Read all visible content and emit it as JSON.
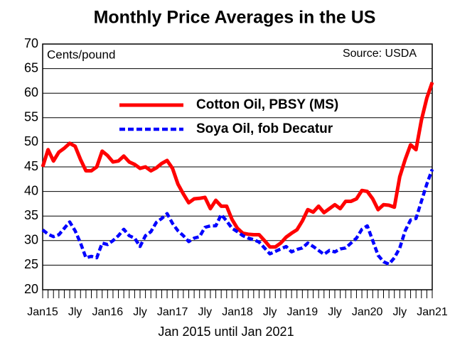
{
  "chart_data": {
    "type": "line",
    "title": "Monthly Price Averages in the US",
    "y_axis_label": "Cents/pound",
    "source": "Source: USDA",
    "x_axis_label": "Jan 2015 until Jan 2021",
    "categories": [
      "Jan15",
      null,
      null,
      null,
      null,
      null,
      "Jly",
      null,
      null,
      null,
      null,
      null,
      "Jan16",
      null,
      null,
      null,
      null,
      null,
      "Jly",
      null,
      null,
      null,
      null,
      null,
      "Jan17",
      null,
      null,
      null,
      null,
      null,
      "Jly",
      null,
      null,
      null,
      null,
      null,
      "Jan18",
      null,
      null,
      null,
      null,
      null,
      "Jly",
      null,
      null,
      null,
      null,
      null,
      "Jan19",
      null,
      null,
      null,
      null,
      null,
      "Jly",
      null,
      null,
      null,
      null,
      null,
      "Jan20",
      null,
      null,
      null,
      null,
      null,
      "Jly",
      null,
      null,
      null,
      null,
      null,
      "Jan21"
    ],
    "series": [
      {
        "name": "Cotton Oil, PBSY (MS)",
        "color": "#ff0000",
        "dash": false,
        "values": [
          45,
          48.5,
          46.2,
          48,
          48.8,
          49.8,
          49.2,
          46.5,
          44.2,
          44.2,
          45,
          48.2,
          47.3,
          46,
          46.2,
          47.2,
          46,
          45.5,
          44.7,
          45,
          44.2,
          44.8,
          45.7,
          46.3,
          44.7,
          41.5,
          39.5,
          37.7,
          38.5,
          38.6,
          38.8,
          36.5,
          38.2,
          37,
          37,
          34.3,
          32.5,
          31.5,
          31.3,
          31.2,
          31.2,
          30,
          28.7,
          28.7,
          29.5,
          30.7,
          31.5,
          32.2,
          34,
          36.3,
          35.8,
          37,
          35.7,
          36.5,
          37.3,
          36.5,
          38,
          38,
          38.5,
          40.2,
          40,
          38.5,
          36.3,
          37.3,
          37.2,
          36.8,
          43,
          46.5,
          49.5,
          48.5,
          54.5,
          59,
          62.2
        ]
      },
      {
        "name": "Soya Oil, fob Decatur",
        "color": "#0000ff",
        "dash": true,
        "values": [
          32.2,
          31.3,
          30.8,
          31.2,
          32.5,
          33.8,
          32,
          29.5,
          26.5,
          26.8,
          26.5,
          29.5,
          29.2,
          30,
          31,
          32.3,
          31,
          30.5,
          28.8,
          31,
          31.8,
          33.7,
          34.5,
          35.5,
          33.5,
          32,
          31,
          29.8,
          30.5,
          30.8,
          32.7,
          33,
          33,
          35.3,
          34,
          32.5,
          31.8,
          31,
          30.5,
          30.2,
          29.7,
          28.5,
          27.3,
          27.8,
          28.3,
          28.8,
          27.7,
          28.2,
          28.5,
          29.5,
          28.8,
          28,
          27.2,
          28,
          27.7,
          28.3,
          28.5,
          29.5,
          30.5,
          32.3,
          33,
          30,
          27,
          25.7,
          25.2,
          26.5,
          28.5,
          32,
          34.2,
          34.5,
          38,
          41.5,
          44.5
        ]
      }
    ],
    "ylim": [
      20,
      70
    ],
    "yticks": [
      20,
      25,
      30,
      35,
      40,
      45,
      50,
      55,
      60,
      65,
      70
    ],
    "grid": true
  }
}
